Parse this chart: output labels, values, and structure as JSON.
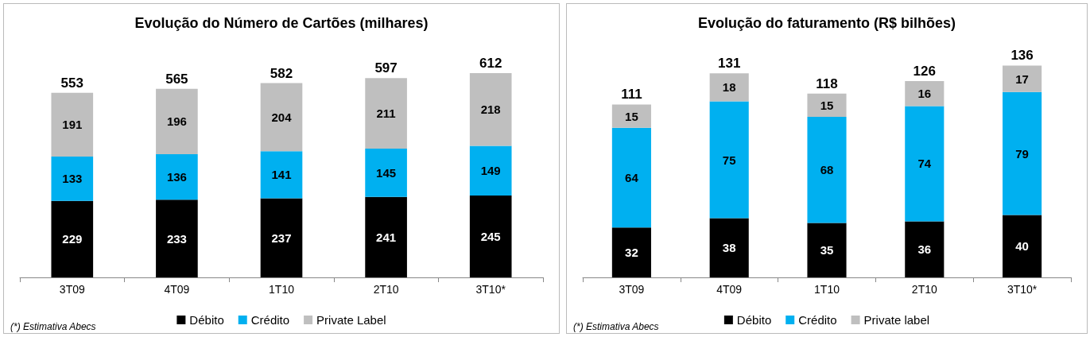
{
  "chart_data": [
    {
      "type": "bar",
      "title": "Evolução do Número de Cartões (milhares)",
      "categories": [
        "3T09",
        "4T09",
        "1T10",
        "2T10",
        "3T10*"
      ],
      "stacked": true,
      "data_labels": true,
      "legend": "bottom",
      "grid": false,
      "series": [
        {
          "name": "Débito",
          "color": "#000000",
          "values": [
            229,
            233,
            237,
            241,
            245
          ]
        },
        {
          "name": "Crédito",
          "color": "#00b0f0",
          "values": [
            133,
            136,
            141,
            145,
            149
          ]
        },
        {
          "name": "Private Label",
          "color": "#bfbfbf",
          "values": [
            191,
            196,
            204,
            211,
            218
          ]
        }
      ],
      "totals": [
        "553",
        "565",
        "582",
        "597",
        "612"
      ],
      "annotations": [
        "(*) Estimativa Abecs"
      ]
    },
    {
      "type": "bar",
      "title": "Evolução do faturamento (R$ bilhões)",
      "categories": [
        "3T09",
        "4T09",
        "1T10",
        "2T10",
        "3T10*"
      ],
      "stacked": true,
      "data_labels": true,
      "legend": "bottom",
      "grid": false,
      "series": [
        {
          "name": "Débito",
          "color": "#000000",
          "values": [
            32,
            38,
            35,
            36,
            40
          ]
        },
        {
          "name": "Crédito",
          "color": "#00b0f0",
          "values": [
            64,
            75,
            68,
            74,
            79
          ]
        },
        {
          "name": "Private label",
          "color": "#bfbfbf",
          "values": [
            15,
            18,
            15,
            16,
            17
          ]
        }
      ],
      "totals": [
        "111",
        "131",
        "118",
        "126",
        "136"
      ],
      "annotations": [
        "(*) Estimativa Abecs"
      ]
    }
  ]
}
